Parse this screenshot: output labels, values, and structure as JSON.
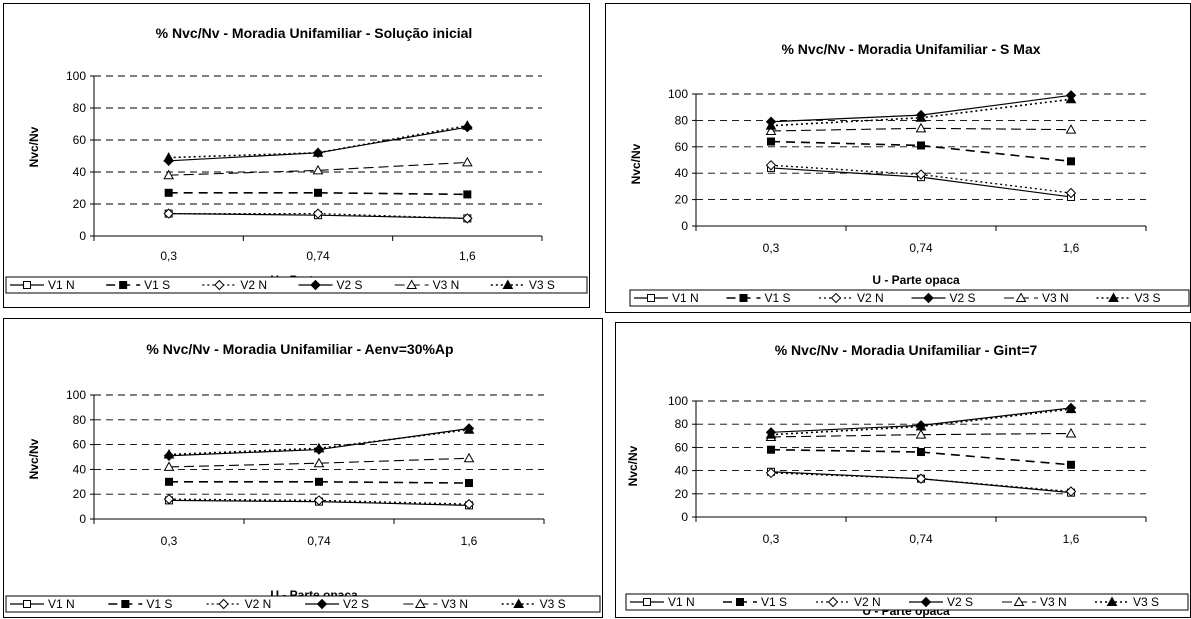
{
  "chart_data": [
    {
      "type": "line",
      "title": "% Nvc/Nv - Moradia Unifamiliar - Solução inicial",
      "xlabel": "U - Parte opaca",
      "ylabel": "Nvc/Nv",
      "categories": [
        "0,3",
        "0,74",
        "1,6"
      ],
      "ylim": [
        0,
        100
      ],
      "yticks": [
        "0",
        "20",
        "40",
        "60",
        "80",
        "100"
      ],
      "grid": true,
      "legend_position": "bottom",
      "series": [
        {
          "name": "V1 N",
          "values": [
            14,
            13,
            11
          ]
        },
        {
          "name": "V1 S",
          "values": [
            27,
            27,
            26
          ]
        },
        {
          "name": "V2 N",
          "values": [
            14,
            14,
            11
          ]
        },
        {
          "name": "V2 S",
          "values": [
            47,
            52,
            68
          ]
        },
        {
          "name": "V3 N",
          "values": [
            38,
            41,
            46
          ]
        },
        {
          "name": "V3 S",
          "values": [
            49,
            52,
            69
          ]
        }
      ]
    },
    {
      "type": "line",
      "title": "% Nvc/Nv - Moradia Unifamiliar - S Max",
      "xlabel": "U - Parte opaca",
      "ylabel": "Nvc/Nv",
      "categories": [
        "0,3",
        "0,74",
        "1,6"
      ],
      "ylim": [
        0,
        100
      ],
      "yticks": [
        "0",
        "20",
        "40",
        "60",
        "80",
        "100"
      ],
      "grid": true,
      "legend_position": "bottom",
      "series": [
        {
          "name": "V1 N",
          "values": [
            44,
            37,
            22
          ]
        },
        {
          "name": "V1 S",
          "values": [
            64,
            61,
            49
          ]
        },
        {
          "name": "V2 N",
          "values": [
            46,
            39,
            25
          ]
        },
        {
          "name": "V2 S",
          "values": [
            79,
            84,
            99
          ]
        },
        {
          "name": "V3 N",
          "values": [
            72,
            74,
            73
          ]
        },
        {
          "name": "V3 S",
          "values": [
            76,
            82,
            96
          ]
        }
      ]
    },
    {
      "type": "line",
      "title": "% Nvc/Nv - Moradia Unifamiliar - Aenv=30%Ap",
      "xlabel": "U - Parte opaca",
      "ylabel": "Nvc/Nv",
      "categories": [
        "0,3",
        "0,74",
        "1,6"
      ],
      "ylim": [
        0,
        100
      ],
      "yticks": [
        "0",
        "20",
        "40",
        "60",
        "80",
        "100"
      ],
      "grid": true,
      "legend_position": "bottom",
      "series": [
        {
          "name": "V1 N",
          "values": [
            15,
            14,
            11
          ]
        },
        {
          "name": "V1 S",
          "values": [
            30,
            30,
            29
          ]
        },
        {
          "name": "V2 N",
          "values": [
            16,
            15,
            12
          ]
        },
        {
          "name": "V2 S",
          "values": [
            51,
            56,
            73
          ]
        },
        {
          "name": "V3 N",
          "values": [
            42,
            45,
            49
          ]
        },
        {
          "name": "V3 S",
          "values": [
            52,
            57,
            72
          ]
        }
      ]
    },
    {
      "type": "line",
      "title": "% Nvc/Nv - Moradia Unifamiliar - Gint=7",
      "xlabel": "U - Parte opaca",
      "ylabel": "Nvc/Nv",
      "categories": [
        "0,3",
        "0,74",
        "1,6"
      ],
      "ylim": [
        0,
        100
      ],
      "yticks": [
        "0",
        "20",
        "40",
        "60",
        "80",
        "100"
      ],
      "grid": true,
      "legend_position": "bottom",
      "series": [
        {
          "name": "V1 N",
          "values": [
            39,
            33,
            21
          ]
        },
        {
          "name": "V1 S",
          "values": [
            58,
            56,
            45
          ]
        },
        {
          "name": "V2 N",
          "values": [
            38,
            33,
            22
          ]
        },
        {
          "name": "V2 S",
          "values": [
            73,
            79,
            94
          ]
        },
        {
          "name": "V3 N",
          "values": [
            69,
            71,
            72
          ]
        },
        {
          "name": "V3 S",
          "values": [
            71,
            78,
            93
          ]
        }
      ]
    }
  ]
}
